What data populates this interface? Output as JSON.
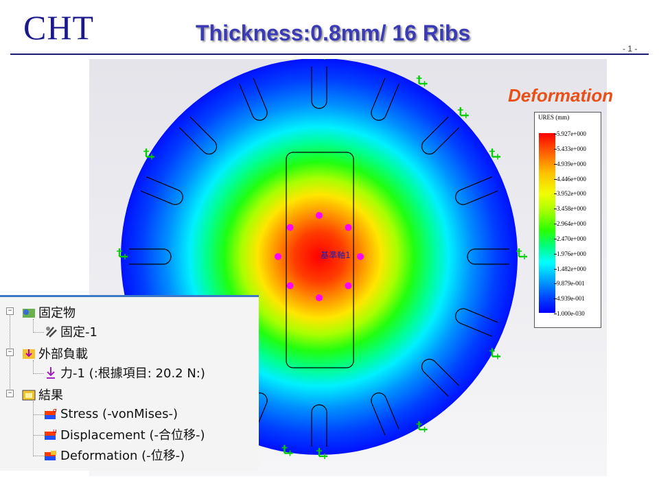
{
  "header": {
    "logo": "CHT",
    "title": "Thickness:0.8mm/ 16 Ribs",
    "page_number": "- 1 -"
  },
  "plot": {
    "label": "Deformation",
    "axis_label": "基準軸1"
  },
  "legend": {
    "title": "URES (mm)",
    "ticks": [
      "5.927e+000",
      "5.433e+000",
      "4.939e+000",
      "4.446e+000",
      "3.952e+000",
      "3.458e+000",
      "2.964e+000",
      "2.470e+000",
      "1.976e+000",
      "1.482e+000",
      "9.879e-001",
      "4.939e-001",
      "1.000e-030"
    ]
  },
  "tree": {
    "fixtures_label": "固定物",
    "fixed_item": "固定-1",
    "loads_label": "外部負載",
    "force_item": "力-1 (:根據項目: 20.2 N:)",
    "results_label": "結果",
    "stress": "Stress (-vonMises-)",
    "displacement": "Displacement (-合位移-)",
    "deformation": "Deformation (-位移-)"
  },
  "colors": {
    "accent": "#3b3bb5",
    "logo": "#1a1a8c",
    "deformation_label": "#e8501a"
  }
}
